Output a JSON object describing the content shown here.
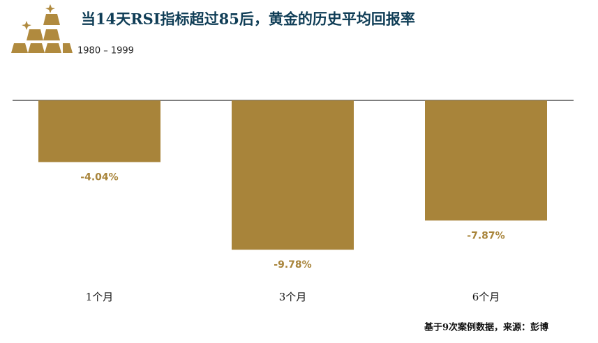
{
  "chart_data": {
    "type": "bar",
    "title": "当14天RSI指标超过85后，黄金的历史平均回报率",
    "subtitle": "1980 – 1999",
    "categories": [
      "1个月",
      "3个月",
      "6个月"
    ],
    "values": [
      -4.04,
      -9.78,
      -7.87
    ],
    "value_labels": [
      "-4.04%",
      "-9.78%",
      "-7.87%"
    ],
    "color": "#a8843a",
    "source": "基于9次案例数据，来源：彭博"
  }
}
